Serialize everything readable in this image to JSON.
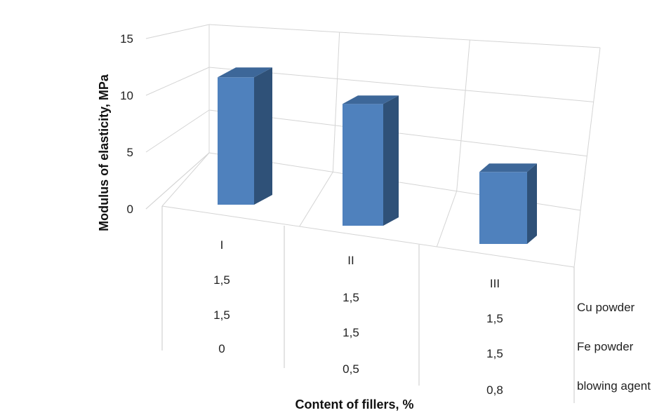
{
  "chart_data": {
    "type": "bar",
    "title": "",
    "ylabel": "Modulus of elasticity, MPa",
    "xlabel": "Content of fillers, %",
    "ylim": [
      0,
      15
    ],
    "yticks": [
      "0",
      "5",
      "10",
      "15"
    ],
    "categories": [
      "I",
      "II",
      "III"
    ],
    "values": [
      11.5,
      11.0,
      6.5
    ],
    "bar_color": "#4f81bd",
    "grid": true,
    "data_table": {
      "row_labels": [
        "Cu powder",
        "Fe powder",
        "blowing agent"
      ],
      "rows": [
        [
          "1,5",
          "1,5",
          "1,5"
        ],
        [
          "1,5",
          "1,5",
          "1,5"
        ],
        [
          "0",
          "0,5",
          "0,8"
        ]
      ]
    }
  }
}
